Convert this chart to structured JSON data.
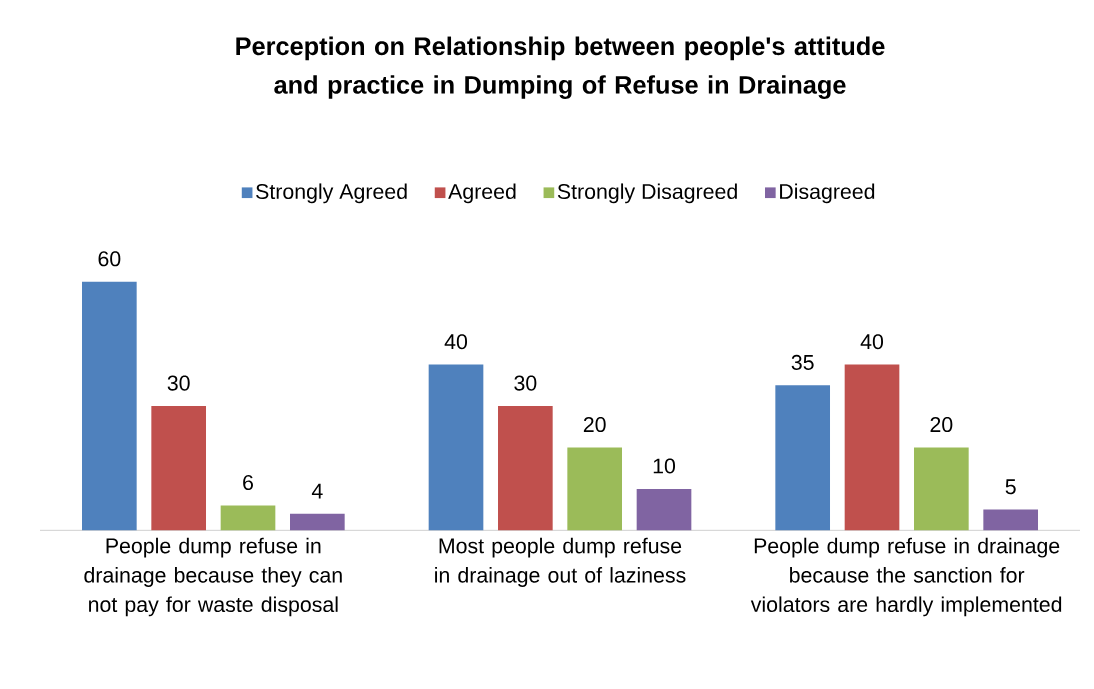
{
  "chart_data": {
    "type": "bar",
    "title": "Perception on Relationship between people's attitude and practice in Dumping of Refuse in Drainage",
    "categories": [
      "People dump refuse in drainage because they can not pay for waste disposal",
      "Most people dump refuse in drainage out of laziness",
      "People dump refuse in drainage because the sanction for violators are hardly implemented"
    ],
    "series": [
      {
        "name": "Strongly Agreed",
        "color": "#4f81bd",
        "values": [
          60,
          40,
          35
        ]
      },
      {
        "name": "Agreed",
        "color": "#c0504d",
        "values": [
          30,
          30,
          40
        ]
      },
      {
        "name": "Strongly Disagreed",
        "color": "#9bbb59",
        "values": [
          6,
          20,
          20
        ]
      },
      {
        "name": "Disagreed",
        "color": "#8064a2",
        "values": [
          4,
          10,
          5
        ]
      }
    ],
    "data_labels": true,
    "legend": "top",
    "grid": false
  }
}
